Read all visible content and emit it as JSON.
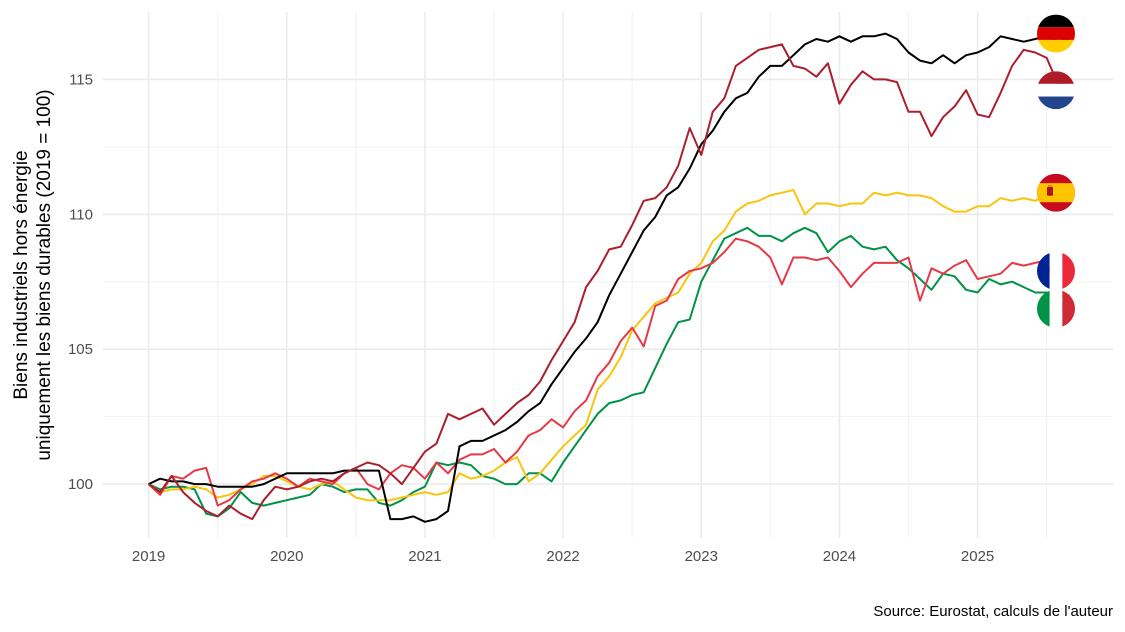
{
  "chart_data": {
    "type": "line",
    "ylabel_line1": "Biens industriels hors énergie",
    "ylabel_line2": "uniquement les biens durables (2019 = 100)",
    "x_ticks": [
      "2019",
      "2020",
      "2021",
      "2022",
      "2023",
      "2024",
      "2025"
    ],
    "y_ticks": [
      100,
      105,
      110,
      115
    ],
    "xlim": [
      2018.67,
      2025.98
    ],
    "ylim": [
      98.0,
      117.5
    ],
    "grid": true,
    "caption": "Source: Eurostat, calculs de l'auteur",
    "legend": "flags at line ends",
    "series": [
      {
        "country": "Germany",
        "flag": "de",
        "color": "#000000",
        "values": [
          100.0,
          100.2,
          100.1,
          100.1,
          100.0,
          100.0,
          99.9,
          99.9,
          99.9,
          99.9,
          100.0,
          100.2,
          100.4,
          100.4,
          100.4,
          100.4,
          100.4,
          100.5,
          100.5,
          100.5,
          100.5,
          98.7,
          98.7,
          98.8,
          98.6,
          98.7,
          99.0,
          101.4,
          101.6,
          101.6,
          101.8,
          102.0,
          102.3,
          102.7,
          103.0,
          103.7,
          104.3,
          104.9,
          105.4,
          106.0,
          107.0,
          107.8,
          108.6,
          109.4,
          109.9,
          110.7,
          111.0,
          111.7,
          112.6,
          113.1,
          113.8,
          114.3,
          114.5,
          115.1,
          115.5,
          115.5,
          115.9,
          116.3,
          116.5,
          116.4,
          116.6,
          116.4,
          116.6,
          116.6,
          116.7,
          116.5,
          116.0,
          115.7,
          115.6,
          115.9,
          115.6,
          115.9,
          116.0,
          116.2,
          116.6,
          116.5,
          116.4,
          116.5,
          116.6,
          116.4,
          116.5
        ]
      },
      {
        "country": "Netherlands",
        "flag": "nl",
        "color": "#aa1f2e",
        "values": [
          100.0,
          99.7,
          100.3,
          99.7,
          99.3,
          99.0,
          98.8,
          99.2,
          98.9,
          98.7,
          99.4,
          99.9,
          99.8,
          99.9,
          100.1,
          100.2,
          100.1,
          100.4,
          100.6,
          100.8,
          100.7,
          100.4,
          100.0,
          100.6,
          101.2,
          101.5,
          102.6,
          102.4,
          102.6,
          102.8,
          102.2,
          102.6,
          103.0,
          103.3,
          103.8,
          104.6,
          105.3,
          106.0,
          107.3,
          107.9,
          108.7,
          108.8,
          109.6,
          110.5,
          110.6,
          111.0,
          111.8,
          113.2,
          112.2,
          113.8,
          114.3,
          115.5,
          115.8,
          116.1,
          116.2,
          116.3,
          115.5,
          115.4,
          115.1,
          115.6,
          114.1,
          114.8,
          115.3,
          115.0,
          115.0,
          114.9,
          113.8,
          113.8,
          112.9,
          113.6,
          114.0,
          114.6,
          113.7,
          113.6,
          114.5,
          115.5,
          116.1,
          116.0,
          115.8,
          114.8,
          114.8
        ]
      },
      {
        "country": "Spain",
        "flag": "es",
        "color": "#f7c50f",
        "values": [
          100.0,
          99.7,
          99.8,
          99.8,
          99.9,
          99.8,
          99.5,
          99.6,
          99.8,
          100.0,
          100.3,
          100.3,
          100.1,
          99.9,
          99.8,
          100.0,
          100.1,
          99.8,
          99.5,
          99.4,
          99.4,
          99.4,
          99.5,
          99.6,
          99.7,
          99.6,
          99.7,
          100.4,
          100.2,
          100.3,
          100.5,
          100.8,
          101.0,
          100.1,
          100.4,
          100.9,
          101.4,
          101.8,
          102.2,
          103.5,
          104.0,
          104.7,
          105.7,
          106.2,
          106.7,
          106.9,
          107.1,
          107.8,
          108.2,
          109.0,
          109.4,
          110.1,
          110.4,
          110.5,
          110.7,
          110.8,
          110.9,
          110.0,
          110.4,
          110.4,
          110.3,
          110.4,
          110.4,
          110.8,
          110.7,
          110.8,
          110.7,
          110.7,
          110.6,
          110.3,
          110.1,
          110.1,
          110.3,
          110.3,
          110.6,
          110.5,
          110.6,
          110.5,
          110.7,
          110.8,
          111.0
        ]
      },
      {
        "country": "France",
        "flag": "fr",
        "color": "#e63946",
        "values": [
          100.0,
          99.6,
          100.3,
          100.2,
          100.5,
          100.6,
          99.2,
          99.4,
          99.8,
          100.1,
          100.2,
          100.4,
          100.2,
          99.9,
          100.2,
          100.1,
          100.0,
          100.4,
          100.6,
          100.0,
          99.8,
          100.4,
          100.7,
          100.6,
          100.2,
          100.8,
          100.4,
          100.9,
          101.1,
          101.1,
          101.3,
          100.8,
          101.2,
          101.8,
          102.0,
          102.4,
          102.1,
          102.7,
          103.1,
          104.0,
          104.5,
          105.3,
          105.8,
          105.1,
          106.6,
          106.8,
          107.6,
          107.9,
          108.0,
          108.2,
          108.6,
          109.1,
          109.0,
          108.8,
          108.4,
          107.4,
          108.4,
          108.4,
          108.3,
          108.4,
          107.9,
          107.3,
          107.8,
          108.2,
          108.2,
          108.2,
          108.4,
          106.8,
          108.0,
          107.8,
          108.1,
          108.3,
          107.6,
          107.7,
          107.8,
          108.2,
          108.1,
          108.2,
          108.3,
          106.9,
          107.0
        ]
      },
      {
        "country": "Italy",
        "flag": "it",
        "color": "#009246",
        "values": [
          100.0,
          99.8,
          99.9,
          99.9,
          99.8,
          98.9,
          98.8,
          99.1,
          99.7,
          99.3,
          99.2,
          99.3,
          99.4,
          99.5,
          99.6,
          100.0,
          99.9,
          99.7,
          99.8,
          99.8,
          99.3,
          99.2,
          99.4,
          99.7,
          99.9,
          100.8,
          100.7,
          100.8,
          100.7,
          100.3,
          100.2,
          100.0,
          100.0,
          100.4,
          100.4,
          100.1,
          100.8,
          101.4,
          102.0,
          102.6,
          103.0,
          103.1,
          103.3,
          103.4,
          104.3,
          105.2,
          106.0,
          106.1,
          107.5,
          108.3,
          109.1,
          109.3,
          109.5,
          109.2,
          109.2,
          109.0,
          109.3,
          109.5,
          109.3,
          108.6,
          109.0,
          109.2,
          108.8,
          108.7,
          108.8,
          108.3,
          108.0,
          107.6,
          107.2,
          107.8,
          107.7,
          107.2,
          107.1,
          107.6,
          107.4,
          107.5,
          107.3,
          107.1,
          107.1,
          106.7,
          106.5
        ]
      }
    ]
  }
}
